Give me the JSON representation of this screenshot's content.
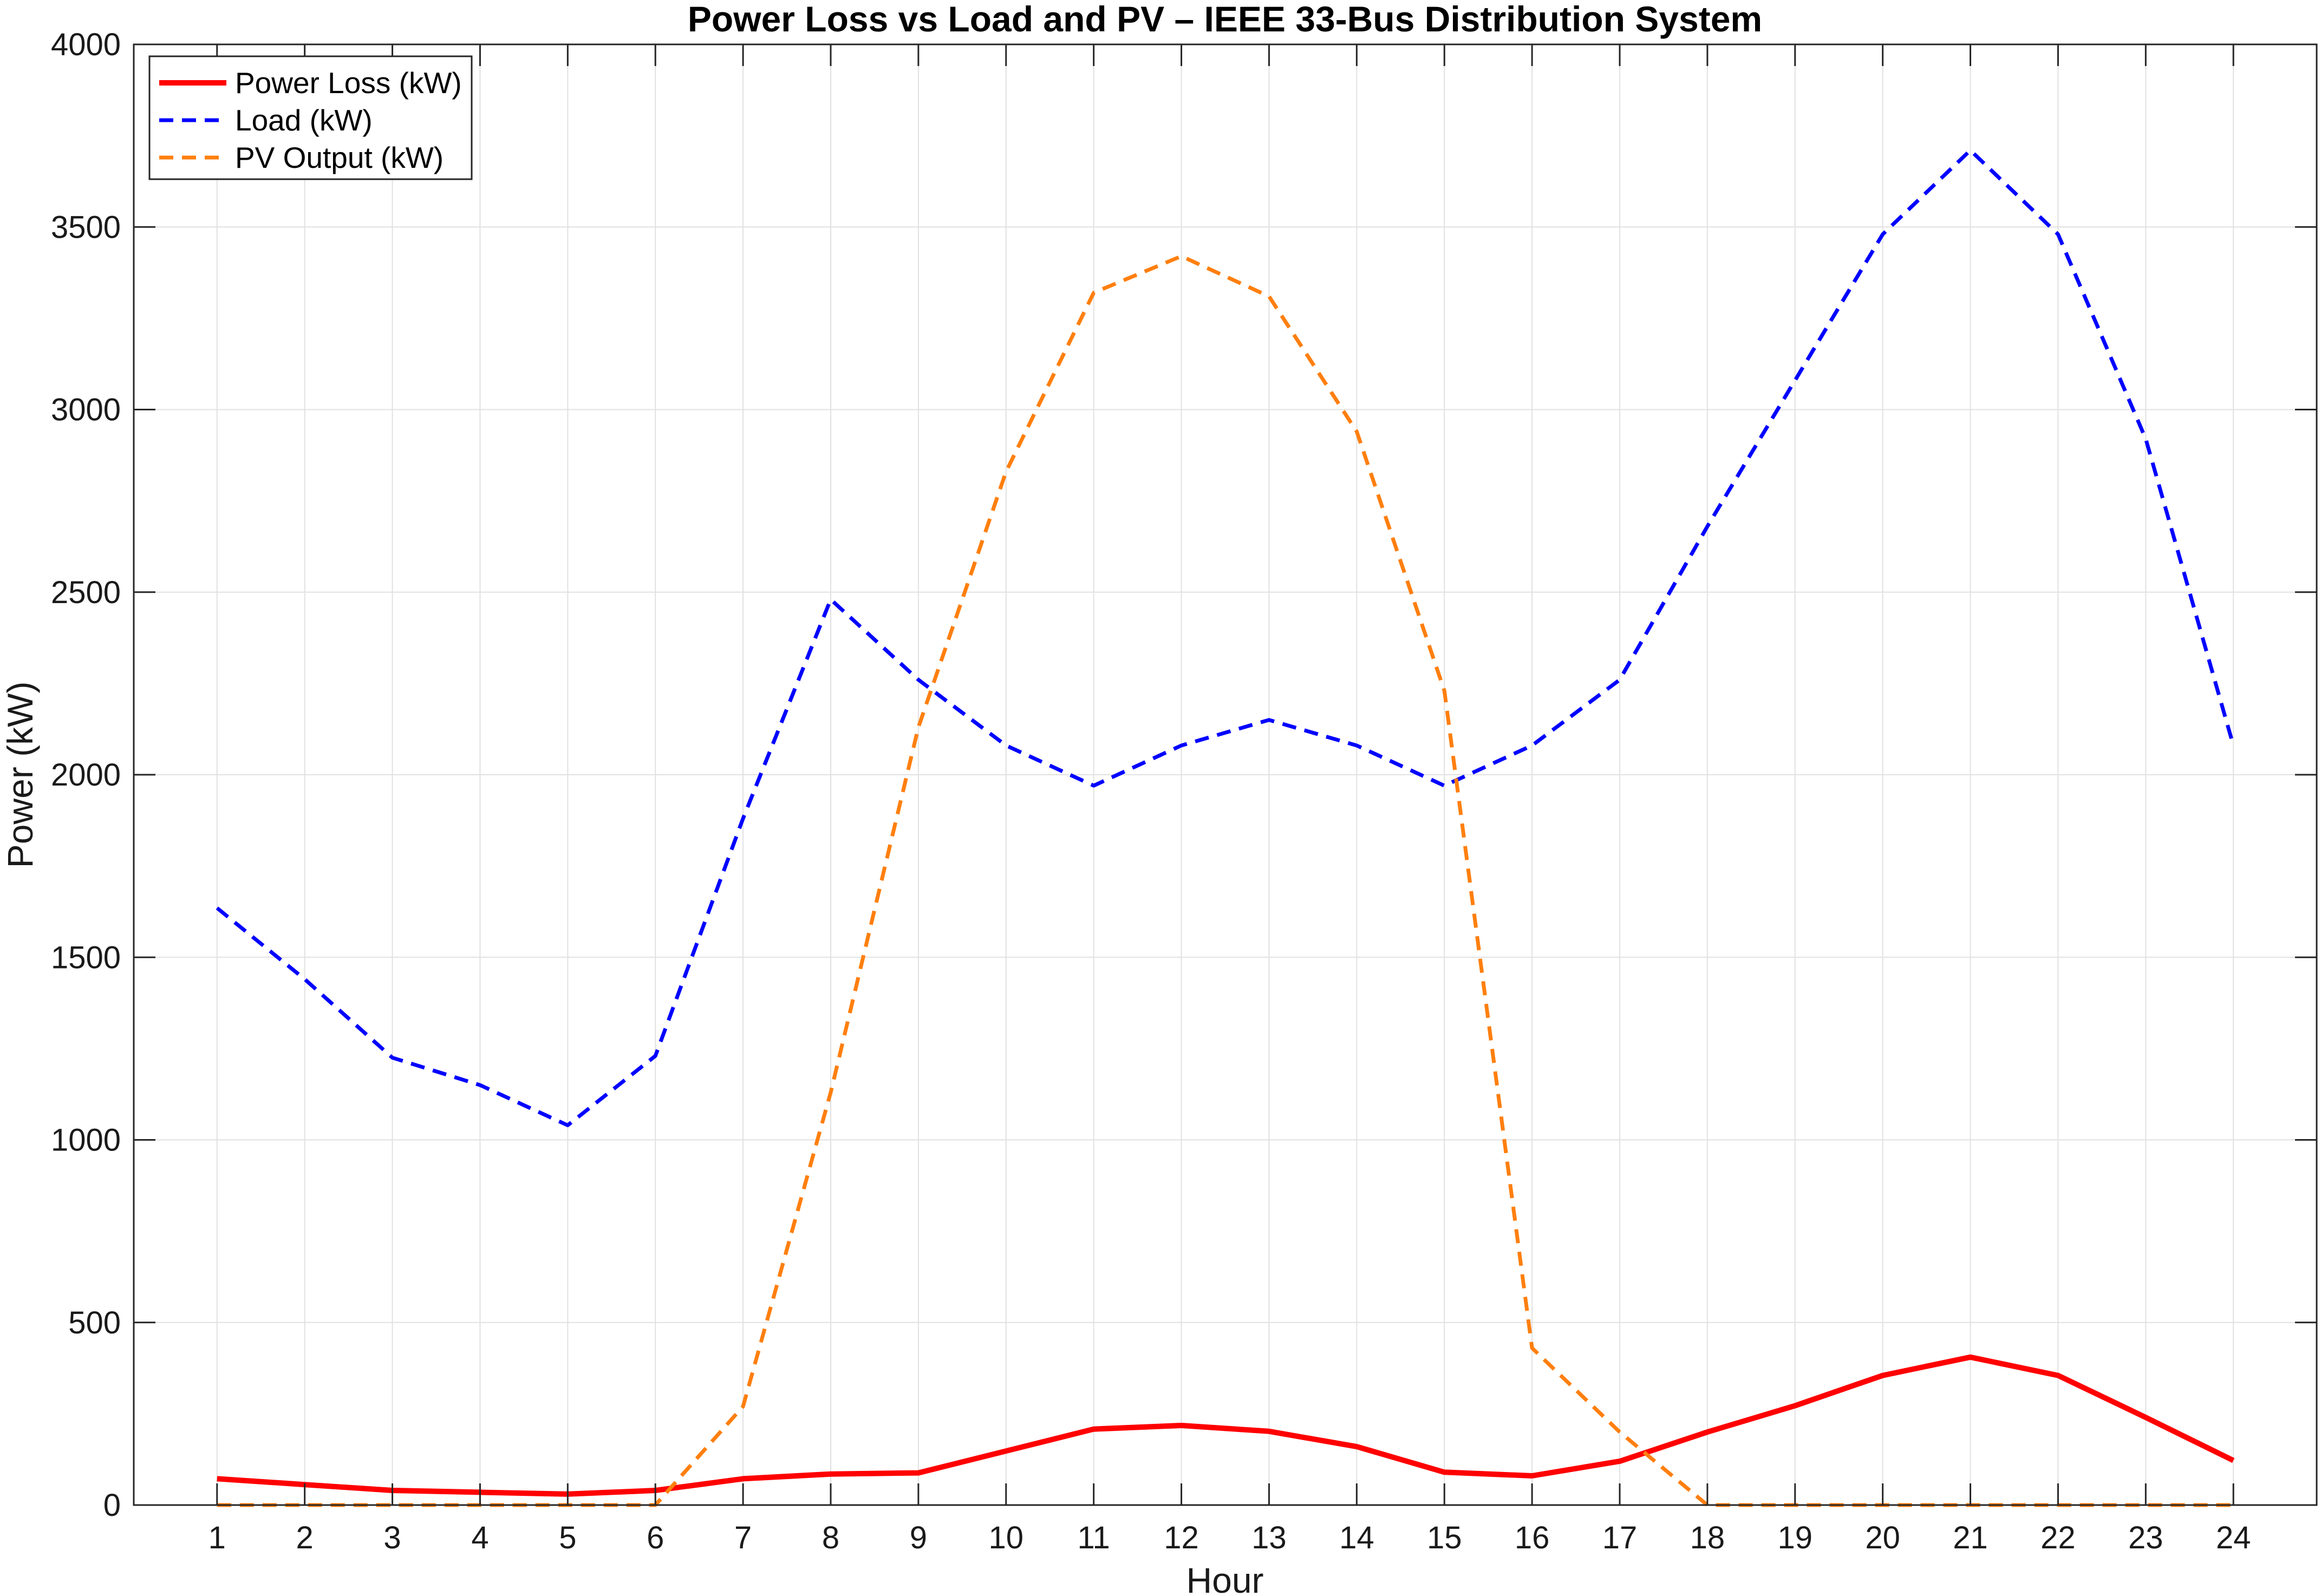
{
  "chart_data": {
    "type": "line",
    "title": "Power Loss vs Load and PV – IEEE 33-Bus Distribution System",
    "xlabel": "Hour",
    "ylabel": "Power (kW)",
    "x": [
      1,
      2,
      3,
      4,
      5,
      6,
      7,
      8,
      9,
      10,
      11,
      12,
      13,
      14,
      15,
      16,
      17,
      18,
      19,
      20,
      21,
      22,
      23,
      24
    ],
    "xlim": [
      0.05,
      24.95
    ],
    "ylim": [
      0,
      4000
    ],
    "yticks": [
      0,
      500,
      1000,
      1500,
      2000,
      2500,
      3000,
      3500,
      4000
    ],
    "grid": true,
    "legend_position": "top-left",
    "series": [
      {
        "name": "Power Loss (kW)",
        "color": "#ff0000",
        "style": "solid",
        "values": [
          72,
          56,
          40,
          35,
          30,
          40,
          72,
          85,
          88,
          148,
          208,
          218,
          202,
          160,
          90,
          80,
          120,
          200,
          272,
          355,
          405,
          355,
          240,
          122
        ]
      },
      {
        "name": "Load (kW)",
        "color": "#0000ff",
        "style": "dashed",
        "values": [
          1635,
          1440,
          1225,
          1150,
          1040,
          1230,
          1880,
          2480,
          2260,
          2080,
          1970,
          2080,
          2150,
          2080,
          1970,
          2080,
          2260,
          2680,
          3080,
          3480,
          3710,
          3480,
          2920,
          2080
        ]
      },
      {
        "name": "PV Output (kW)",
        "color": "#ff7f0e",
        "style": "dashed",
        "values": [
          0,
          0,
          0,
          0,
          0,
          0,
          270,
          1130,
          2130,
          2830,
          3320,
          3420,
          3310,
          2940,
          2230,
          430,
          200,
          0,
          0,
          0,
          0,
          0,
          0,
          0
        ]
      }
    ]
  }
}
